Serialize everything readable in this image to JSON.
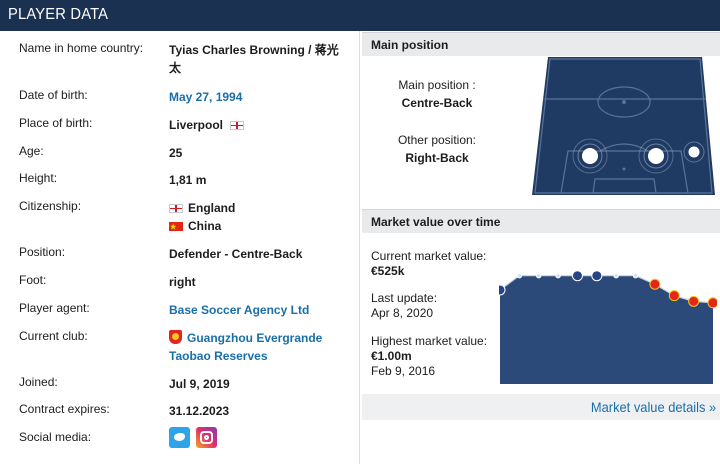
{
  "header": {
    "title": "PLAYER DATA"
  },
  "player": {
    "rows": [
      {
        "label": "Name in home country:",
        "value_line1": "Tyias Charles Browning / 蒋光",
        "value_line2": "太"
      },
      {
        "label": "Date of birth:",
        "value": "May 27, 1994"
      },
      {
        "label": "Place of birth:",
        "value": "Liverpool"
      },
      {
        "label": "Age:",
        "value": "25"
      },
      {
        "label": "Height:",
        "value": "1,81 m"
      },
      {
        "label": "Citizenship:",
        "value_line1": "England",
        "value_line2": "China"
      },
      {
        "label": "Position:",
        "value": "Defender - Centre-Back"
      },
      {
        "label": "Foot:",
        "value": "right"
      },
      {
        "label": "Player agent:",
        "value": "Base Soccer Agency Ltd"
      },
      {
        "label": "Current club:",
        "value_line1": "Guangzhou Evergrande",
        "value_line2": "Taobao Reserves"
      },
      {
        "label": "Joined:",
        "value": "Jul 9, 2019"
      },
      {
        "label": "Contract expires:",
        "value": "31.12.2023"
      },
      {
        "label": "Social media:",
        "value": ""
      }
    ],
    "social_icons": [
      "twitter-icon",
      "instagram-icon"
    ]
  },
  "position_panel": {
    "title": "Main position",
    "main_label": "Main position :",
    "main_value": "Centre-Back",
    "other_label": "Other position:",
    "other_value": "Right-Back"
  },
  "market_panel": {
    "title": "Market value over time",
    "current_label": "Current market value:",
    "current_value": "€525k",
    "update_label": "Last update:",
    "update_value": "Apr 8, 2020",
    "highest_label": "Highest market value:",
    "highest_value": "€1.00m",
    "highest_date": "Feb 9, 2016",
    "details_link": "Market value details »"
  },
  "chart_data": {
    "type": "area",
    "series": [
      {
        "values": [
          0.75,
          1.0,
          1.0,
          1.0,
          1.0,
          1.0,
          1.0,
          1.0,
          0.85,
          0.65,
          0.55,
          0.525
        ]
      }
    ],
    "ylim": [
      0,
      1.1
    ],
    "grid": false
  },
  "colors": {
    "header_bg": "#1a3151",
    "pitch": "#1f3a63",
    "chart_area": "#2b4a7a",
    "link": "#1a6ea8"
  }
}
